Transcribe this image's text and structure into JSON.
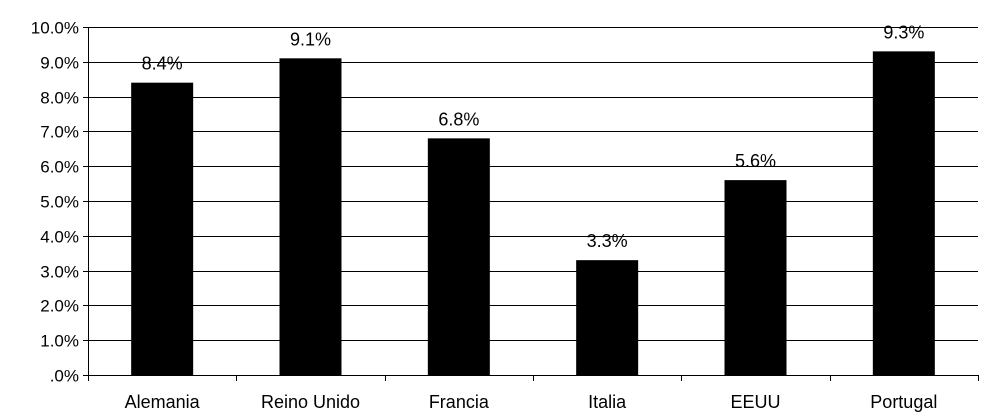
{
  "chart_data": {
    "type": "bar",
    "title": "",
    "xlabel": "",
    "ylabel": "",
    "categories": [
      "Alemania",
      "Reino Unido",
      "Francia",
      "Italia",
      "EEUU",
      "Portugal"
    ],
    "values": [
      8.4,
      9.1,
      6.8,
      3.3,
      5.6,
      9.3
    ],
    "value_labels": [
      "8.4%",
      "9.1%",
      "6.8%",
      "3.3%",
      "5.6%",
      "9.3%"
    ],
    "ylim": [
      0,
      10
    ],
    "yticks": [
      0,
      1,
      2,
      3,
      4,
      5,
      6,
      7,
      8,
      9,
      10
    ],
    "ytick_labels": [
      ".0%",
      "1.0%",
      "2.0%",
      "3.0%",
      "4.0%",
      "5.0%",
      "6.0%",
      "7.0%",
      "8.0%",
      "9.0%",
      "10.0%"
    ],
    "grid": true,
    "legend": "none",
    "colors": {
      "bar": "#000000",
      "grid": "#000000",
      "background": "#ffffff"
    }
  }
}
